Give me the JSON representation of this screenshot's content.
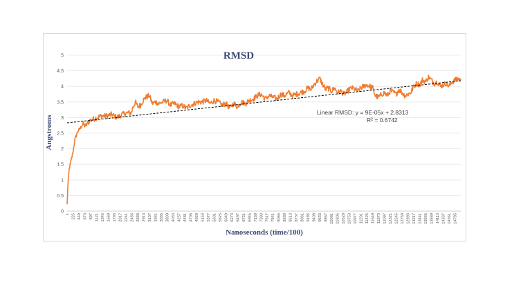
{
  "chart_data": {
    "type": "line",
    "title": "RMSD",
    "xlabel": "Nanoseconds (time/100)",
    "ylabel": "Angstroms",
    "ylim": [
      0,
      5
    ],
    "yticks": [
      0,
      0.5,
      1,
      1.5,
      2,
      2.5,
      3,
      3.5,
      4,
      4.5,
      5
    ],
    "xrange": [
      1,
      15009
    ],
    "xticks": [
      1,
      225,
      449,
      673,
      897,
      1121,
      1345,
      1569,
      1793,
      2017,
      2241,
      2465,
      2689,
      2913,
      3137,
      3361,
      3585,
      3809,
      4033,
      4257,
      4481,
      4705,
      4929,
      5153,
      5377,
      5601,
      5825,
      6049,
      6273,
      6497,
      6721,
      6945,
      7169,
      7393,
      7617,
      7841,
      8065,
      8289,
      8513,
      8737,
      8961,
      9185,
      9409,
      9633,
      9857,
      10081,
      10305,
      10529,
      10753,
      10977,
      11201,
      11425,
      11649,
      11873,
      12097,
      12321,
      12545,
      12769,
      12993,
      13217,
      13441,
      13665,
      13889,
      14113,
      14337,
      14561,
      14785
    ],
    "grid": true,
    "series": [
      {
        "color": "#ed7d31",
        "x": [
          1,
          30,
          80,
          150,
          225,
          300,
          400,
          500,
          600,
          700,
          850,
          1000,
          1150,
          1300,
          1500,
          1700,
          1900,
          2100,
          2300,
          2450,
          2500,
          2600,
          2700,
          2800,
          2900,
          3000,
          3137,
          3250,
          3361,
          3500,
          3650,
          3800,
          3950,
          4100,
          4257,
          4400,
          4550,
          4705,
          4850,
          5000,
          5153,
          5300,
          5450,
          5601,
          5750,
          5900,
          6049,
          6200,
          6350,
          6497,
          6650,
          6800,
          6945,
          7100,
          7250,
          7393,
          7550,
          7700,
          7841,
          8000,
          8150,
          8289,
          8450,
          8600,
          8737,
          8900,
          9050,
          9185,
          9300,
          9409,
          9500,
          9633,
          9750,
          9857,
          9950,
          10081,
          10200,
          10305,
          10450,
          10529,
          10650,
          10753,
          10850,
          10977,
          11100,
          11201,
          11300,
          11425,
          11550,
          11649,
          11750,
          11873,
          12000,
          12097,
          12200,
          12321,
          12450,
          12545,
          12650,
          12769,
          12880,
          12993,
          13100,
          13217,
          13330,
          13441,
          13550,
          13665,
          13780,
          13889,
          14000,
          14113,
          14230,
          14337,
          14450,
          14561,
          14680,
          14785,
          14900,
          15009
        ],
        "y": [
          0.2,
          0.8,
          1.35,
          1.6,
          1.9,
          2.3,
          2.55,
          2.65,
          2.8,
          2.72,
          2.9,
          2.95,
          3.0,
          3.05,
          3.05,
          3.1,
          3.0,
          3.1,
          3.15,
          3.15,
          3.3,
          3.5,
          3.35,
          3.4,
          3.55,
          3.65,
          3.7,
          3.45,
          3.5,
          3.45,
          3.5,
          3.55,
          3.4,
          3.45,
          3.35,
          3.38,
          3.3,
          3.4,
          3.45,
          3.5,
          3.5,
          3.55,
          3.45,
          3.55,
          3.5,
          3.4,
          3.45,
          3.3,
          3.45,
          3.35,
          3.5,
          3.45,
          3.55,
          3.6,
          3.7,
          3.75,
          3.6,
          3.7,
          3.65,
          3.6,
          3.75,
          3.7,
          3.8,
          3.7,
          3.75,
          3.8,
          3.85,
          3.95,
          3.9,
          4.05,
          4.15,
          4.25,
          4.05,
          3.9,
          3.95,
          3.85,
          3.95,
          3.8,
          3.85,
          3.75,
          3.8,
          3.9,
          3.95,
          3.9,
          3.85,
          3.95,
          4.0,
          4.05,
          4.0,
          3.95,
          3.7,
          3.65,
          3.75,
          3.8,
          3.7,
          3.85,
          3.8,
          3.75,
          3.9,
          3.8,
          3.7,
          3.75,
          3.8,
          4.0,
          4.1,
          4.05,
          4.2,
          4.15,
          4.3,
          4.2,
          4.1,
          4.15,
          4.0,
          4.05,
          4.1,
          4.0,
          4.15,
          4.2,
          4.25,
          4.2
        ]
      }
    ],
    "trendline": {
      "style": "dashed",
      "color": "#000000",
      "slope": 9e-05,
      "intercept": 2.8313,
      "label": "Linear RMSD: y = 9E-05x + 2.8313",
      "r2_label": "R² = 0.6742"
    }
  }
}
